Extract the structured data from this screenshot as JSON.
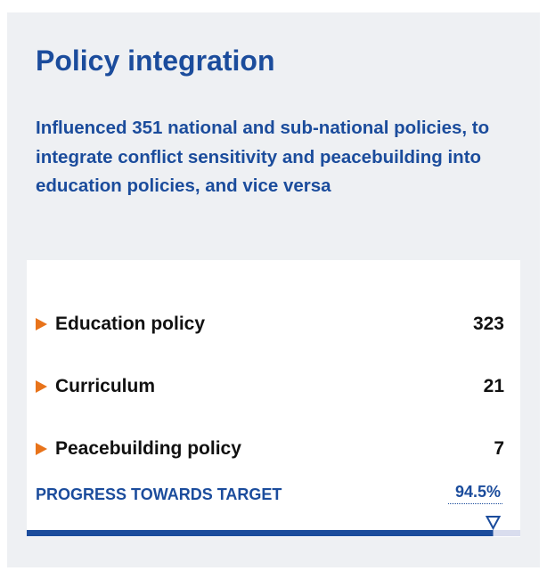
{
  "header": {
    "title": "Policy integration",
    "subtitle": "Influenced 351 national and sub-national policies, to integrate conflict sensitivity and peacebuilding into education policies, and vice versa"
  },
  "items": [
    {
      "label": "Education policy",
      "value": 323
    },
    {
      "label": "Curriculum",
      "value": 21
    },
    {
      "label": "Peacebuilding policy",
      "value": 7
    }
  ],
  "progress": {
    "label": "PROGRESS TOWARDS TARGET",
    "value": 94.5,
    "value_label": "94.5%",
    "range": [
      0,
      100
    ]
  }
}
